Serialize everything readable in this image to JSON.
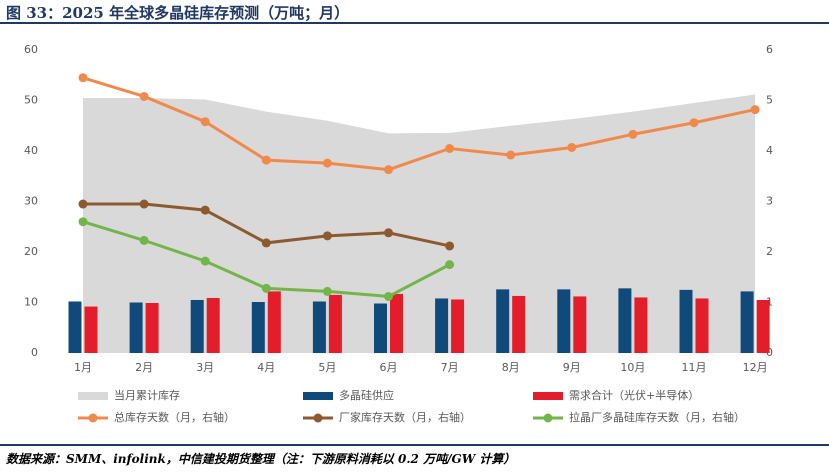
{
  "chart_data": {
    "type": "bar",
    "title": "图 33：2025 年全球多晶硅库存预测（万吨；月）",
    "source": "数据来源：SMM、infolink，中信建投期货整理（注：下游原料消耗以 0.2 万吨/GW 计算）",
    "categories": [
      "1月",
      "2月",
      "3月",
      "4月",
      "5月",
      "6月",
      "7月",
      "8月",
      "9月",
      "10月",
      "11月",
      "12月"
    ],
    "ylim": [
      0,
      60
    ],
    "yticks": [
      0,
      10,
      20,
      30,
      40,
      50,
      60
    ],
    "y2lim": [
      0,
      6
    ],
    "y2ticks": [
      0,
      1,
      2,
      3,
      4,
      5,
      6
    ],
    "series": [
      {
        "name": "当月累计库存",
        "type": "area",
        "color": "#d9d9d9",
        "values": [
          50.5,
          50.5,
          50.2,
          47.8,
          46,
          43.5,
          43.6,
          45,
          46.3,
          47.8,
          49.5,
          51.2
        ]
      },
      {
        "name": "多晶硅供应",
        "type": "bar",
        "color": "#0f4a7b",
        "values": [
          10.2,
          10,
          10.5,
          10.1,
          10.2,
          9.8,
          10.8,
          12.6,
          12.6,
          12.8,
          12.5,
          12.2
        ]
      },
      {
        "name": "需求合计（光伏+半导体）",
        "type": "bar",
        "color": "#e31e2a",
        "values": [
          9.2,
          9.9,
          10.9,
          12.2,
          11.5,
          11.7,
          10.6,
          11.3,
          11.2,
          11,
          10.8,
          10.5
        ]
      },
      {
        "name": "总库存天数（月，右轴）",
        "type": "line",
        "axis": "y2",
        "color": "#f08a4b",
        "values": [
          5.45,
          5.08,
          4.58,
          3.82,
          3.76,
          3.63,
          4.05,
          3.92,
          4.07,
          4.33,
          4.56,
          4.82
        ]
      },
      {
        "name": "厂家库存天数（月，右轴）",
        "type": "line",
        "axis": "y2",
        "color": "#8c5a2e",
        "values": [
          2.95,
          2.95,
          2.83,
          2.18,
          2.32,
          2.38,
          2.12,
          null,
          null,
          null,
          null,
          null
        ]
      },
      {
        "name": "拉晶厂多晶硅库存天数（月，右轴）",
        "type": "line",
        "axis": "y2",
        "color": "#72b64a",
        "values": [
          2.6,
          2.23,
          1.82,
          1.28,
          1.22,
          1.12,
          1.75,
          null,
          null,
          null,
          null,
          null
        ]
      }
    ]
  }
}
